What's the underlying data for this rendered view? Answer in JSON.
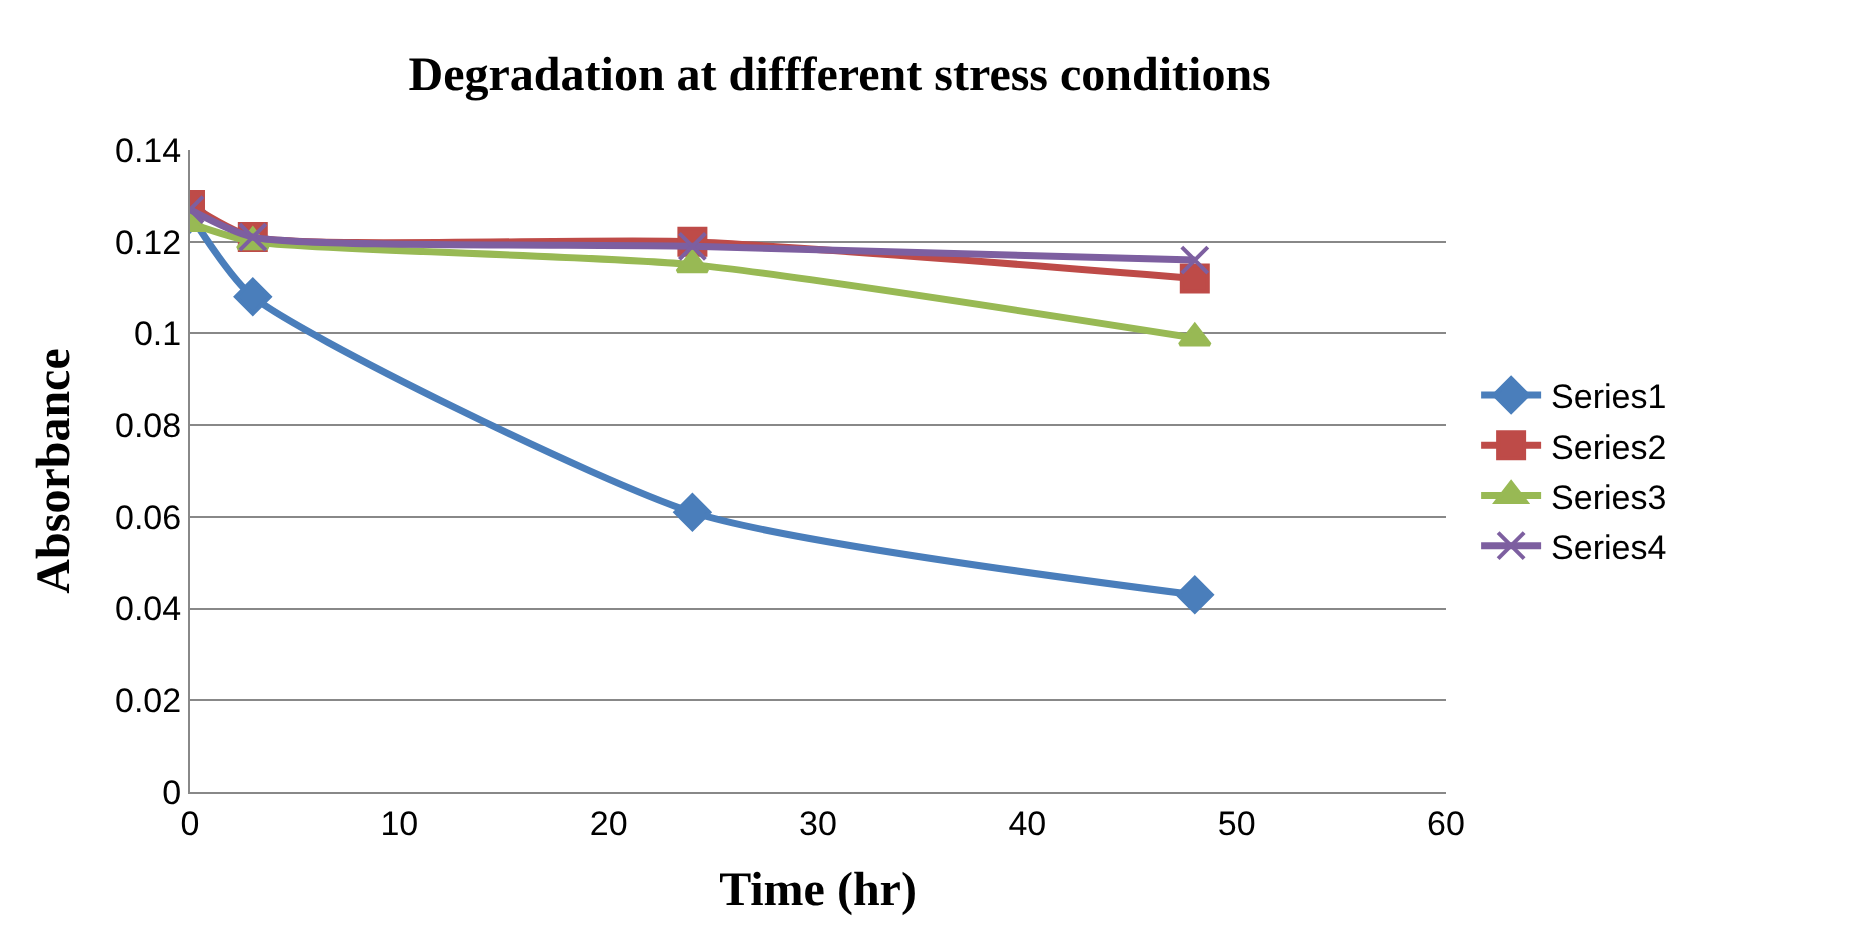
{
  "chart_data": {
    "type": "line",
    "title": "Degradation at diffferent stress conditions",
    "xlabel": "Time (hr)",
    "ylabel": "Absorbance",
    "x": [
      0,
      3,
      24,
      48
    ],
    "series": [
      {
        "name": "Series1",
        "color": "#4a7ebb",
        "marker": "diamond",
        "values": [
          0.126,
          0.108,
          0.061,
          0.043
        ]
      },
      {
        "name": "Series2",
        "color": "#be4b48",
        "marker": "square",
        "values": [
          0.128,
          0.121,
          0.12,
          0.112
        ]
      },
      {
        "name": "Series3",
        "color": "#98b954",
        "marker": "triangle",
        "values": [
          0.124,
          0.12,
          0.115,
          0.099
        ]
      },
      {
        "name": "Series4",
        "color": "#7d5fa0",
        "marker": "cross",
        "values": [
          0.127,
          0.121,
          0.119,
          0.116
        ]
      }
    ],
    "xlim": [
      0,
      60
    ],
    "xticks": [
      0,
      10,
      20,
      30,
      40,
      50,
      60
    ],
    "ylim": [
      0,
      0.14
    ],
    "yticks": [
      0,
      0.02,
      0.04,
      0.06,
      0.08,
      0.1,
      0.12,
      0.14
    ],
    "grid": "y",
    "legend": "right"
  }
}
